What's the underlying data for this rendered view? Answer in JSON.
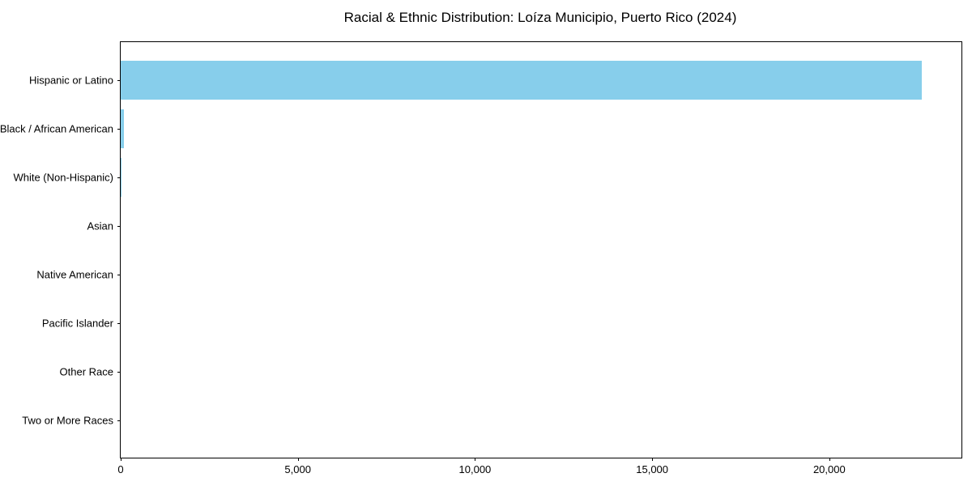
{
  "chart_data": {
    "type": "bar",
    "orientation": "horizontal",
    "title": "Racial & Ethnic Distribution: Loíza Municipio, Puerto Rico (2024)",
    "categories": [
      "Hispanic or Latino",
      "Black / African American",
      "White (Non-Hispanic)",
      "Asian",
      "Native American",
      "Pacific Islander",
      "Other Race",
      "Two or More Races"
    ],
    "values": [
      22600,
      100,
      30,
      0,
      0,
      0,
      0,
      0
    ],
    "xlabel": "",
    "ylabel": "",
    "xlim": [
      0,
      23730
    ],
    "x_ticks": [
      0,
      5000,
      10000,
      15000,
      20000
    ],
    "x_tick_labels": [
      "0",
      "5,000",
      "10,000",
      "15,000",
      "20,000"
    ],
    "bar_color": "#87CEEB",
    "axis_color": "#000000",
    "background_color": "#FFFFFF",
    "grid": false,
    "legend": false,
    "category_order": "top-to-bottom"
  }
}
